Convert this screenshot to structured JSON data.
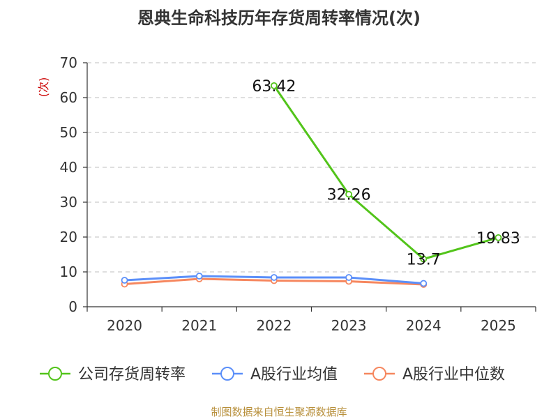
{
  "chart_data": {
    "type": "line",
    "title": "恩典生命科技历年存货周转率情况(次)",
    "ylabel": "(次)",
    "xlabel": "",
    "ylim": [
      0,
      70
    ],
    "yticks": [
      0,
      10,
      20,
      30,
      40,
      50,
      60,
      70
    ],
    "categories": [
      "2020",
      "2021",
      "2022",
      "2023",
      "2024",
      "2025"
    ],
    "grid": true,
    "legend_position": "bottom",
    "series": [
      {
        "name": "公司存货周转率",
        "color": "#52c41a",
        "values": [
          null,
          null,
          63.42,
          32.26,
          13.7,
          19.83
        ],
        "labels": [
          "",
          "",
          "63.42",
          "32.26",
          "13.7",
          "19.83"
        ]
      },
      {
        "name": "A股行业均值",
        "color": "#5b8ff9",
        "values": [
          7.6,
          8.8,
          8.4,
          8.4,
          6.7,
          null
        ]
      },
      {
        "name": "A股行业中位数",
        "color": "#f6875f",
        "values": [
          6.5,
          8.0,
          7.5,
          7.3,
          6.4,
          null
        ]
      }
    ]
  },
  "source_note": "制图数据来自恒生聚源数据库"
}
